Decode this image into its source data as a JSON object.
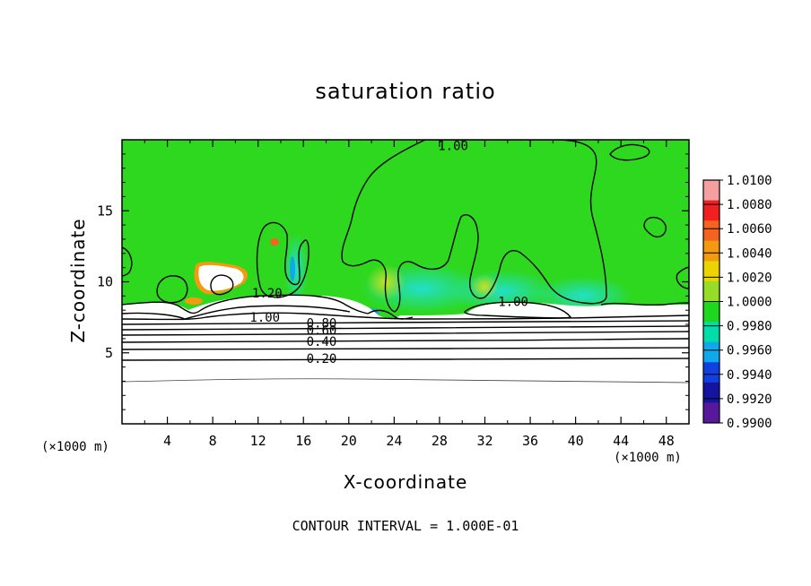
{
  "chart_data": {
    "type": "heatmap",
    "title": "saturation ratio",
    "xlabel": "X-coordinate",
    "ylabel": "Z-coordinate",
    "x_unit": "(×1000 m)",
    "y_unit": "(×1000 m)",
    "xlim": [
      0,
      50
    ],
    "ylim": [
      0,
      20
    ],
    "x_ticks": [
      4,
      8,
      12,
      16,
      20,
      24,
      28,
      32,
      36,
      40,
      44,
      48
    ],
    "y_ticks": [
      5,
      10,
      15
    ],
    "colorbar": {
      "levels": [
        "1.0100",
        "1.0080",
        "1.0060",
        "1.0040",
        "1.0020",
        "1.0000",
        "0.9980",
        "0.9960",
        "0.9940",
        "0.9920",
        "0.9900"
      ],
      "colors": [
        "#f4a0a0",
        "#f02020",
        "#f46420",
        "#f49a10",
        "#ecd400",
        "#96dc28",
        "#1ed81e",
        "#00dcaa",
        "#10a8ea",
        "#1040e0",
        "#1414a0",
        "#58189c"
      ]
    },
    "contour_labels": [
      {
        "text": "1.00",
        "x": 29.2,
        "z": 19.6
      },
      {
        "text": "1.20",
        "x": 12.8,
        "z": 9.2
      },
      {
        "text": "1.00",
        "x": 12.6,
        "z": 7.5
      },
      {
        "text": "0.80",
        "x": 17.6,
        "z": 7.1
      },
      {
        "text": "0.60",
        "x": 17.6,
        "z": 6.6
      },
      {
        "text": "0.40",
        "x": 17.6,
        "z": 5.8
      },
      {
        "text": "0.20",
        "x": 17.6,
        "z": 4.6
      },
      {
        "text": "1.00",
        "x": 34.5,
        "z": 8.6
      }
    ],
    "grid": false
  },
  "footer": "CONTOUR INTERVAL = 1.000E-01"
}
